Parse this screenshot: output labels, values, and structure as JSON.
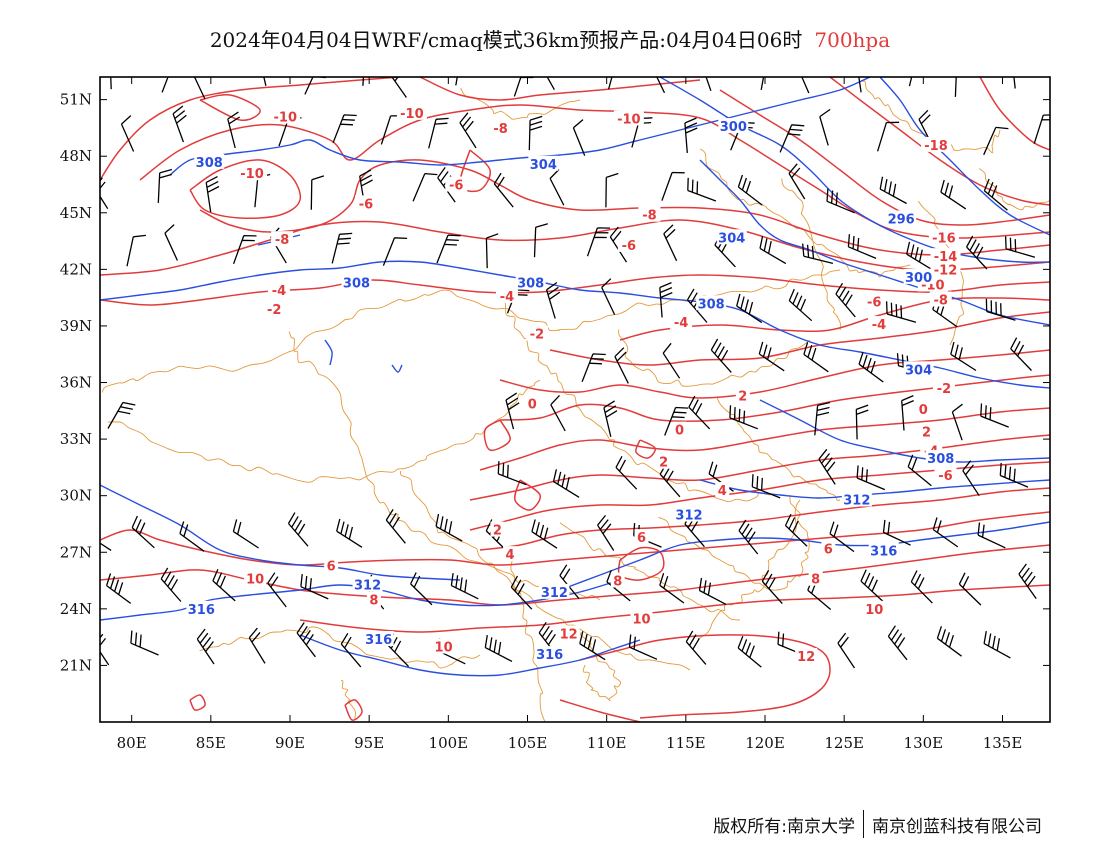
{
  "title": {
    "main": "2024年04月04日WRF/cmaq模式36km预报产品:04月04日06时",
    "level": "700hpa"
  },
  "footer": {
    "copyright": "版权所有:南京大学",
    "company": "南京创蓝科技有限公司"
  },
  "colors": {
    "temperature_contour": "#e23b3b",
    "height_contour": "#2a4fe0",
    "boundary": "#e39a3c",
    "wind_barb": "#000000",
    "level_text": "#e23b3b"
  },
  "map": {
    "lon_ticks": [
      "80E",
      "85E",
      "90E",
      "95E",
      "100E",
      "105E",
      "110E",
      "115E",
      "120E",
      "125E",
      "130E",
      "135E"
    ],
    "lat_ticks": [
      "51N",
      "48N",
      "45N",
      "42N",
      "39N",
      "36N",
      "33N",
      "30N",
      "27N",
      "24N",
      "21N"
    ],
    "temperature_labels": [
      {
        "text": "-10",
        "lon": 89.7,
        "lat": 50.1
      },
      {
        "text": "-10",
        "lon": 97.7,
        "lat": 50.3
      },
      {
        "text": "-10",
        "lon": 111.4,
        "lat": 50.0
      },
      {
        "text": "-8",
        "lon": 103.3,
        "lat": 49.5
      },
      {
        "text": "-10",
        "lon": 87.6,
        "lat": 47.1
      },
      {
        "text": "-6",
        "lon": 100.5,
        "lat": 46.5
      },
      {
        "text": "-6",
        "lon": 94.8,
        "lat": 45.5
      },
      {
        "text": "-8",
        "lon": 89.5,
        "lat": 43.6
      },
      {
        "text": "-8",
        "lon": 112.7,
        "lat": 44.9
      },
      {
        "text": "-6",
        "lon": 111.4,
        "lat": 43.3
      },
      {
        "text": "-4",
        "lon": 89.3,
        "lat": 40.9
      },
      {
        "text": "-2",
        "lon": 89.0,
        "lat": 39.9
      },
      {
        "text": "-4",
        "lon": 103.7,
        "lat": 40.6
      },
      {
        "text": "-2",
        "lon": 105.6,
        "lat": 38.6
      },
      {
        "text": "-4",
        "lon": 114.7,
        "lat": 39.2
      },
      {
        "text": "-18",
        "lon": 130.8,
        "lat": 48.6
      },
      {
        "text": "-16",
        "lon": 131.3,
        "lat": 43.7
      },
      {
        "text": "-14",
        "lon": 131.4,
        "lat": 42.7
      },
      {
        "text": "-12",
        "lon": 131.4,
        "lat": 42.0
      },
      {
        "text": "-10",
        "lon": 130.6,
        "lat": 41.2
      },
      {
        "text": "-8",
        "lon": 131.1,
        "lat": 40.4
      },
      {
        "text": "-6",
        "lon": 126.9,
        "lat": 40.3
      },
      {
        "text": "-4",
        "lon": 127.2,
        "lat": 39.1
      },
      {
        "text": "-2",
        "lon": 131.3,
        "lat": 35.7
      },
      {
        "text": "0",
        "lon": 105.3,
        "lat": 34.9
      },
      {
        "text": "2",
        "lon": 118.6,
        "lat": 35.3
      },
      {
        "text": "0",
        "lon": 114.6,
        "lat": 33.5
      },
      {
        "text": "0",
        "lon": 130.0,
        "lat": 34.6
      },
      {
        "text": "2",
        "lon": 130.2,
        "lat": 33.4
      },
      {
        "text": "-4",
        "lon": 130.5,
        "lat": 32.4
      },
      {
        "text": "-6",
        "lon": 131.4,
        "lat": 31.1
      },
      {
        "text": "2",
        "lon": 113.6,
        "lat": 31.8
      },
      {
        "text": "4",
        "lon": 117.3,
        "lat": 30.3
      },
      {
        "text": "2",
        "lon": 103.1,
        "lat": 28.2
      },
      {
        "text": "4",
        "lon": 103.9,
        "lat": 26.9
      },
      {
        "text": "6",
        "lon": 112.2,
        "lat": 27.8
      },
      {
        "text": "6",
        "lon": 92.6,
        "lat": 26.3
      },
      {
        "text": "10",
        "lon": 87.8,
        "lat": 25.6
      },
      {
        "text": "8",
        "lon": 95.3,
        "lat": 24.5
      },
      {
        "text": "8",
        "lon": 110.7,
        "lat": 25.5
      },
      {
        "text": "6",
        "lon": 124.0,
        "lat": 27.2
      },
      {
        "text": "8",
        "lon": 123.2,
        "lat": 25.6
      },
      {
        "text": "10",
        "lon": 99.7,
        "lat": 22.0
      },
      {
        "text": "10",
        "lon": 112.2,
        "lat": 23.5
      },
      {
        "text": "12",
        "lon": 107.6,
        "lat": 22.7
      },
      {
        "text": "10",
        "lon": 126.9,
        "lat": 24.0
      },
      {
        "text": "12",
        "lon": 122.6,
        "lat": 21.5
      }
    ],
    "height_labels": [
      {
        "text": "308",
        "lon": 84.9,
        "lat": 47.7
      },
      {
        "text": "304",
        "lon": 106.0,
        "lat": 47.6
      },
      {
        "text": "300",
        "lon": 118.0,
        "lat": 49.6
      },
      {
        "text": "304",
        "lon": 117.9,
        "lat": 43.7
      },
      {
        "text": "296",
        "lon": 128.6,
        "lat": 44.7
      },
      {
        "text": "308",
        "lon": 94.2,
        "lat": 41.3
      },
      {
        "text": "308",
        "lon": 105.2,
        "lat": 41.3
      },
      {
        "text": "308",
        "lon": 116.6,
        "lat": 40.2
      },
      {
        "text": "300",
        "lon": 129.7,
        "lat": 41.6
      },
      {
        "text": "304",
        "lon": 129.7,
        "lat": 36.7
      },
      {
        "text": "308",
        "lon": 131.1,
        "lat": 32.0
      },
      {
        "text": "312",
        "lon": 125.8,
        "lat": 29.8
      },
      {
        "text": "312",
        "lon": 115.2,
        "lat": 29.0
      },
      {
        "text": "316",
        "lon": 127.5,
        "lat": 27.1
      },
      {
        "text": "312",
        "lon": 94.9,
        "lat": 25.3
      },
      {
        "text": "312",
        "lon": 106.7,
        "lat": 24.9
      },
      {
        "text": "316",
        "lon": 84.4,
        "lat": 24.0
      },
      {
        "text": "316",
        "lon": 95.6,
        "lat": 22.4
      },
      {
        "text": "316",
        "lon": 106.4,
        "lat": 21.6
      }
    ]
  }
}
